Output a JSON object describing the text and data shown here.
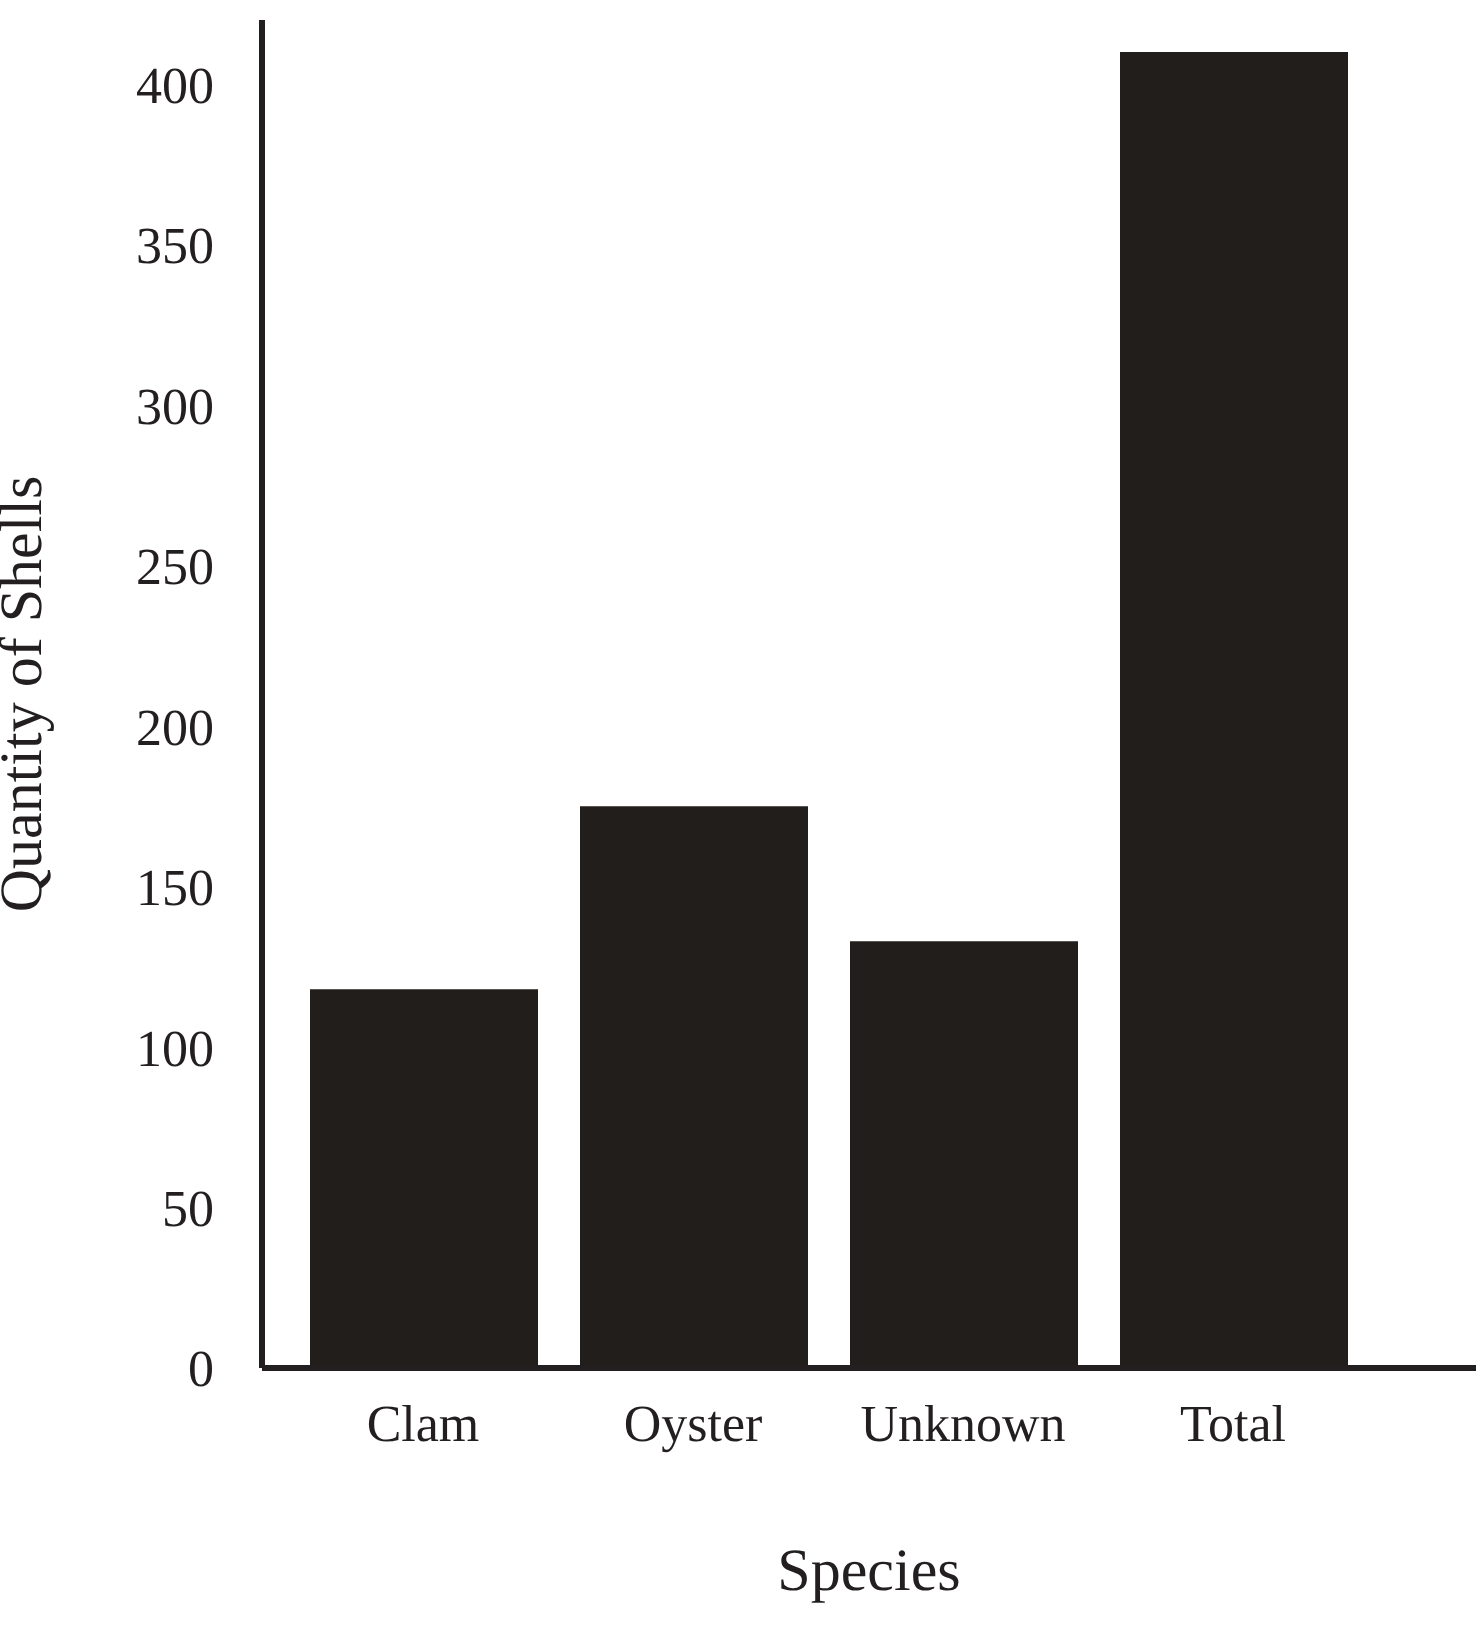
{
  "chart_data": {
    "type": "bar",
    "xlabel": "Species",
    "ylabel": "Quantity of Shells",
    "categories": [
      "Clam",
      "Oyster",
      "Unknown",
      "Total"
    ],
    "values": [
      118,
      175,
      133,
      410
    ],
    "color": "#221e1b",
    "ylim": [
      0,
      420
    ],
    "yticks": [
      0,
      50,
      100,
      150,
      200,
      250,
      300,
      350,
      400
    ],
    "grid": false
  }
}
